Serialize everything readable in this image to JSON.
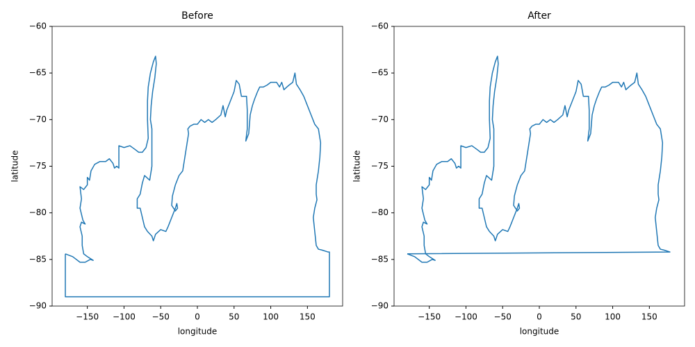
{
  "chart_data": [
    {
      "type": "line",
      "title": "Before",
      "x_label": "longitude",
      "y_label": "latitude",
      "xlim": [
        -198,
        198
      ],
      "ylim": [
        -90,
        -60
      ],
      "xticks": [
        {
          "value": -150,
          "label": "−150"
        },
        {
          "value": -100,
          "label": "−100"
        },
        {
          "value": -50,
          "label": "−50"
        },
        0,
        50,
        100,
        150
      ],
      "yticks": [
        {
          "value": -90,
          "label": "−90"
        },
        {
          "value": -85,
          "label": "−85"
        },
        {
          "value": -80,
          "label": "−80"
        },
        {
          "value": -75,
          "label": "−75"
        },
        {
          "value": -70,
          "label": "−70"
        },
        {
          "value": -65,
          "label": "−65"
        },
        {
          "value": -60,
          "label": "−60"
        }
      ],
      "series": [
        {
          "color": "#1f77b4",
          "x": [
            -180,
            -170,
            -160,
            -153,
            -146,
            -142,
            -150,
            -155,
            -157,
            -157,
            -160,
            -158,
            -153,
            -156,
            -160,
            -158,
            -160,
            -155,
            -150,
            -150,
            -147,
            -145,
            -140,
            -133,
            -125,
            -120,
            -115,
            -113,
            -110,
            -107,
            -107,
            -100,
            -92,
            -85,
            -80,
            -75,
            -70,
            -67,
            -68,
            -68,
            -67,
            -64,
            -60,
            -57,
            -56,
            -58,
            -61,
            -63,
            -64,
            -62,
            -62,
            -62,
            -65,
            -72,
            -75,
            -78,
            -82,
            -82,
            -78,
            -75,
            -72,
            -68,
            -62,
            -60,
            -57,
            -50,
            -43,
            -40,
            -35,
            -30,
            -28,
            -27,
            -30,
            -35,
            -34,
            -30,
            -25,
            -20,
            -15,
            -12,
            -13,
            -10,
            -5,
            0,
            5,
            10,
            15,
            20,
            25,
            32,
            35,
            38,
            40,
            45,
            50,
            53,
            57,
            60,
            63,
            67,
            68,
            68,
            66,
            70,
            72,
            75,
            78,
            82,
            85,
            90,
            95,
            100,
            105,
            108,
            112,
            115,
            118,
            122,
            125,
            130,
            133,
            135,
            140,
            145,
            150,
            155,
            160,
            165,
            168,
            167,
            165,
            162,
            162,
            163,
            160,
            158,
            160,
            162,
            165,
            170,
            178,
            180,
            180,
            -180,
            -180
          ],
          "y": [
            -84.4,
            -84.7,
            -85.3,
            -85.3,
            -85.0,
            -85.1,
            -84.7,
            -84.4,
            -83.5,
            -82.5,
            -81.5,
            -81.0,
            -81.2,
            -80.8,
            -79.5,
            -78.5,
            -77.2,
            -77.5,
            -77.0,
            -76.2,
            -76.5,
            -75.5,
            -74.8,
            -74.5,
            -74.5,
            -74.2,
            -74.7,
            -75.2,
            -75.0,
            -75.2,
            -72.8,
            -73.0,
            -72.8,
            -73.2,
            -73.5,
            -73.5,
            -73.0,
            -72.0,
            -70.0,
            -68.0,
            -66.5,
            -65.0,
            -63.8,
            -63.2,
            -64.0,
            -65.5,
            -67.0,
            -68.5,
            -70.0,
            -71.0,
            -73.0,
            -75.0,
            -76.5,
            -76.0,
            -76.8,
            -78.0,
            -78.5,
            -79.5,
            -79.5,
            -80.5,
            -81.5,
            -82.0,
            -82.5,
            -83.0,
            -82.3,
            -81.8,
            -82.0,
            -81.5,
            -80.5,
            -79.5,
            -79.0,
            -79.5,
            -79.8,
            -79.2,
            -78.2,
            -77.0,
            -76.0,
            -75.5,
            -73.0,
            -71.5,
            -71.0,
            -70.7,
            -70.5,
            -70.5,
            -70.0,
            -70.3,
            -70.0,
            -70.3,
            -70.0,
            -69.5,
            -68.5,
            -69.7,
            -69.0,
            -68.0,
            -67.0,
            -65.8,
            -66.2,
            -67.5,
            -67.5,
            -67.5,
            -69.0,
            -71.0,
            -72.3,
            -71.5,
            -69.5,
            -68.5,
            -67.8,
            -67.0,
            -66.5,
            -66.5,
            -66.3,
            -66.0,
            -66.0,
            -66.0,
            -66.5,
            -66.0,
            -66.8,
            -66.5,
            -66.3,
            -66.0,
            -65.0,
            -66.2,
            -66.8,
            -67.5,
            -68.5,
            -69.5,
            -70.5,
            -71.0,
            -72.5,
            -74.0,
            -75.5,
            -77.0,
            -78.0,
            -78.6,
            -79.5,
            -80.5,
            -82.0,
            -83.5,
            -83.9,
            -84.0,
            -84.2,
            -84.2,
            -89,
            -89,
            -84.4
          ]
        }
      ]
    },
    {
      "type": "line",
      "title": "After",
      "x_label": "longitude",
      "y_label": "latitude",
      "xlim": [
        -198,
        198
      ],
      "ylim": [
        -90,
        -60
      ],
      "xticks": [
        {
          "value": -150,
          "label": "−150"
        },
        {
          "value": -100,
          "label": "−100"
        },
        {
          "value": -50,
          "label": "−50"
        },
        0,
        50,
        100,
        150
      ],
      "yticks": [
        {
          "value": -90,
          "label": "−90"
        },
        {
          "value": -85,
          "label": "−85"
        },
        {
          "value": -80,
          "label": "−80"
        },
        {
          "value": -75,
          "label": "−75"
        },
        {
          "value": -70,
          "label": "−70"
        },
        {
          "value": -65,
          "label": "−65"
        },
        {
          "value": -60,
          "label": "−60"
        }
      ],
      "series": [
        {
          "color": "#1f77b4",
          "x": [
            -180,
            -170,
            -160,
            -153,
            -146,
            -142,
            -150,
            -155,
            -157,
            -157,
            -160,
            -158,
            -153,
            -156,
            -160,
            -158,
            -160,
            -155,
            -150,
            -150,
            -147,
            -145,
            -140,
            -133,
            -125,
            -120,
            -115,
            -113,
            -110,
            -107,
            -107,
            -100,
            -92,
            -85,
            -80,
            -75,
            -70,
            -67,
            -68,
            -68,
            -67,
            -64,
            -60,
            -57,
            -56,
            -58,
            -61,
            -63,
            -64,
            -62,
            -62,
            -62,
            -65,
            -72,
            -75,
            -78,
            -82,
            -82,
            -78,
            -75,
            -72,
            -68,
            -62,
            -60,
            -57,
            -50,
            -43,
            -40,
            -35,
            -30,
            -28,
            -27,
            -30,
            -35,
            -34,
            -30,
            -25,
            -20,
            -15,
            -12,
            -13,
            -10,
            -5,
            0,
            5,
            10,
            15,
            20,
            25,
            32,
            35,
            38,
            40,
            45,
            50,
            53,
            57,
            60,
            63,
            67,
            68,
            68,
            66,
            70,
            72,
            75,
            78,
            82,
            85,
            90,
            95,
            100,
            105,
            108,
            112,
            115,
            118,
            122,
            125,
            130,
            133,
            135,
            140,
            145,
            150,
            155,
            160,
            165,
            168,
            167,
            165,
            162,
            162,
            163,
            160,
            158,
            160,
            162,
            165,
            170,
            178,
            -180
          ],
          "y": [
            -84.4,
            -84.7,
            -85.3,
            -85.3,
            -85.0,
            -85.1,
            -84.7,
            -84.4,
            -83.5,
            -82.5,
            -81.5,
            -81.0,
            -81.2,
            -80.8,
            -79.5,
            -78.5,
            -77.2,
            -77.5,
            -77.0,
            -76.2,
            -76.5,
            -75.5,
            -74.8,
            -74.5,
            -74.5,
            -74.2,
            -74.7,
            -75.2,
            -75.0,
            -75.2,
            -72.8,
            -73.0,
            -72.8,
            -73.2,
            -73.5,
            -73.5,
            -73.0,
            -72.0,
            -70.0,
            -68.0,
            -66.5,
            -65.0,
            -63.8,
            -63.2,
            -64.0,
            -65.5,
            -67.0,
            -68.5,
            -70.0,
            -71.0,
            -73.0,
            -75.0,
            -76.5,
            -76.0,
            -76.8,
            -78.0,
            -78.5,
            -79.5,
            -79.5,
            -80.5,
            -81.5,
            -82.0,
            -82.5,
            -83.0,
            -82.3,
            -81.8,
            -82.0,
            -81.5,
            -80.5,
            -79.5,
            -79.0,
            -79.5,
            -79.8,
            -79.2,
            -78.2,
            -77.0,
            -76.0,
            -75.5,
            -73.0,
            -71.5,
            -71.0,
            -70.7,
            -70.5,
            -70.5,
            -70.0,
            -70.3,
            -70.0,
            -70.3,
            -70.0,
            -69.5,
            -68.5,
            -69.7,
            -69.0,
            -68.0,
            -67.0,
            -65.8,
            -66.2,
            -67.5,
            -67.5,
            -67.5,
            -69.0,
            -71.0,
            -72.3,
            -71.5,
            -69.5,
            -68.5,
            -67.8,
            -67.0,
            -66.5,
            -66.5,
            -66.3,
            -66.0,
            -66.0,
            -66.0,
            -66.5,
            -66.0,
            -66.8,
            -66.5,
            -66.3,
            -66.0,
            -65.0,
            -66.2,
            -66.8,
            -67.5,
            -68.5,
            -69.5,
            -70.5,
            -71.0,
            -72.5,
            -74.0,
            -75.5,
            -77.0,
            -78.0,
            -78.6,
            -79.5,
            -80.5,
            -82.0,
            -83.5,
            -83.9,
            -84.0,
            -84.2,
            -84.4
          ]
        }
      ]
    }
  ]
}
